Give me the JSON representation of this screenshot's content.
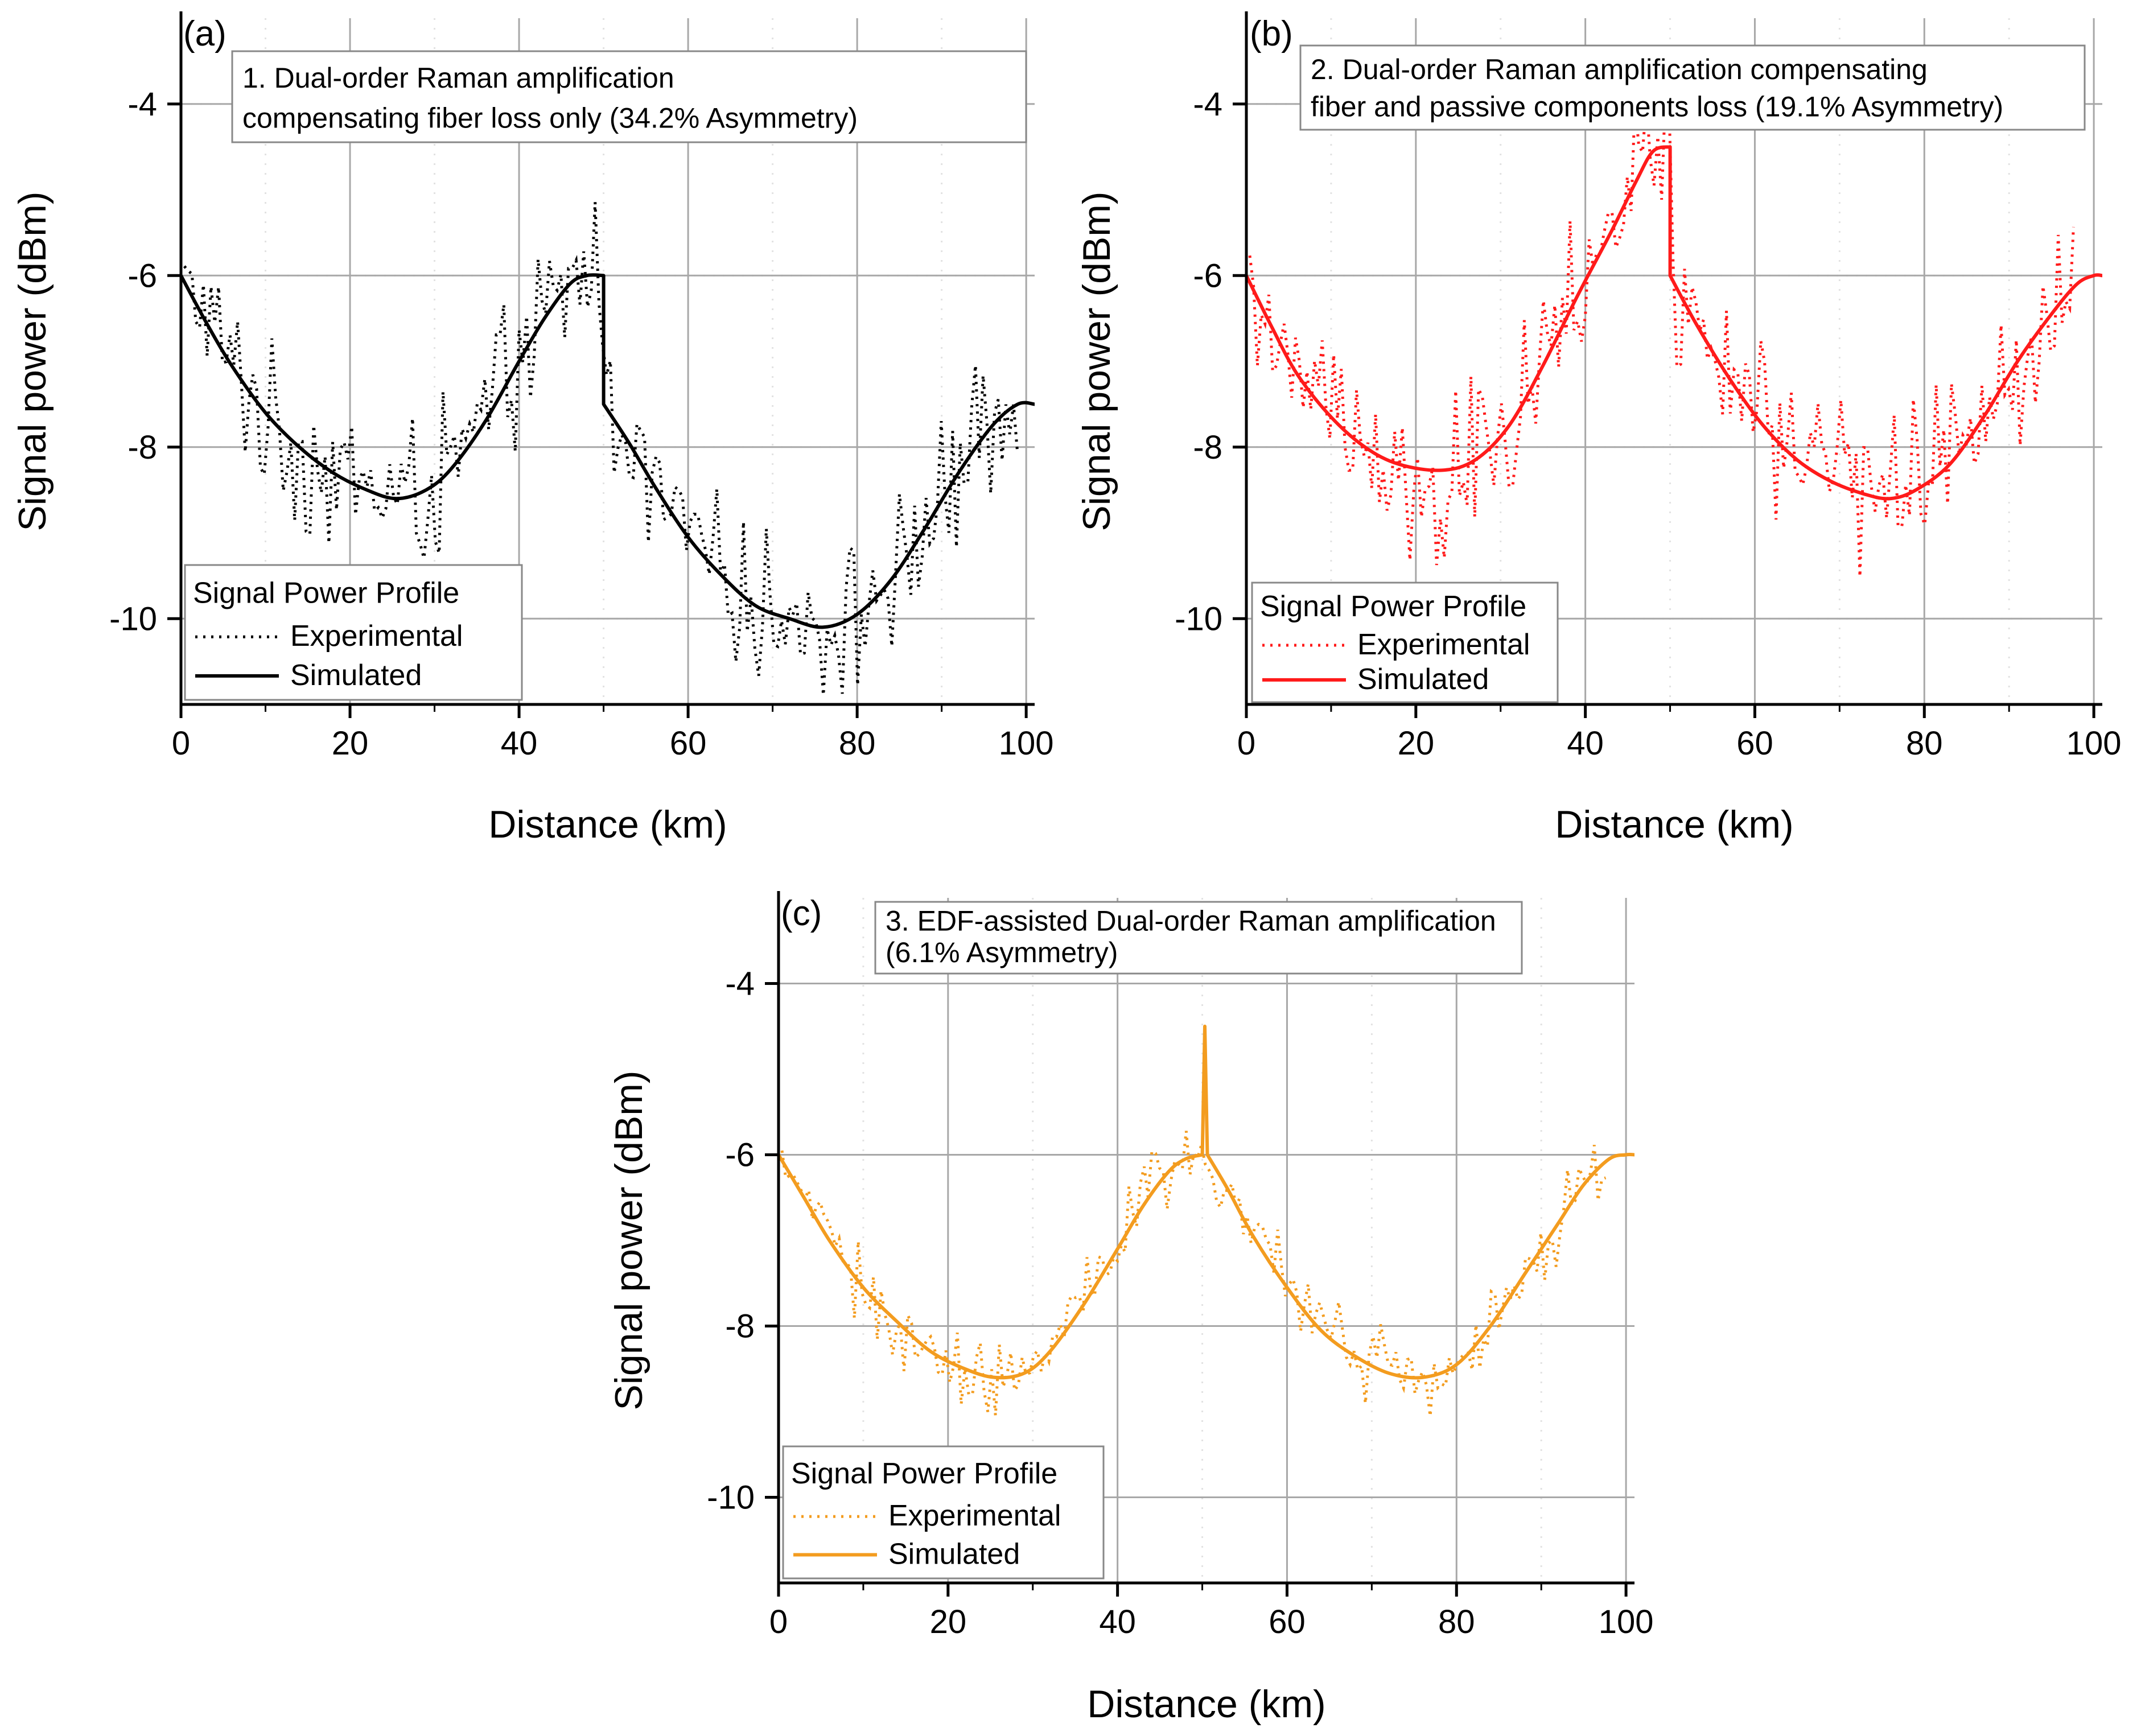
{
  "figure": {
    "ylabel": "Signal power (dBm)",
    "xlabel": "Distance (km)"
  },
  "chart_data": [
    {
      "type": "line",
      "panel": "(a)",
      "color": "#000000",
      "annotation": [
        "1. Dual-order Raman amplification",
        "compensating fiber loss only (34.2% Asymmetry)"
      ],
      "legend": {
        "title": "Signal Power Profile",
        "experimental": "Experimental",
        "simulated": "Simulated",
        "position": "bottom-left"
      },
      "xlabel": "Distance (km)",
      "ylabel": "Signal power (dBm)",
      "xlim": [
        0,
        101
      ],
      "ylim": [
        -11,
        -3
      ],
      "xticks": [
        0,
        20,
        40,
        60,
        80,
        100
      ],
      "yticks": [
        -4,
        -6,
        -8,
        -10
      ],
      "grid": true,
      "series": [
        {
          "name": "Simulated",
          "style": "solid",
          "points": [
            [
              0,
              -6.0
            ],
            [
              3,
              -6.55
            ],
            [
              6,
              -7.05
            ],
            [
              10,
              -7.6
            ],
            [
              14,
              -8.0
            ],
            [
              18,
              -8.3
            ],
            [
              22,
              -8.5
            ],
            [
              25.5,
              -8.6
            ],
            [
              29,
              -8.5
            ],
            [
              32,
              -8.25
            ],
            [
              36,
              -7.7
            ],
            [
              40,
              -7.0
            ],
            [
              43,
              -6.5
            ],
            [
              46,
              -6.1
            ],
            [
              48,
              -6.0
            ],
            [
              50,
              -6.0
            ],
            [
              50,
              -7.5
            ],
            [
              53,
              -7.95
            ],
            [
              56,
              -8.45
            ],
            [
              60,
              -9.05
            ],
            [
              64,
              -9.5
            ],
            [
              68,
              -9.85
            ],
            [
              72,
              -10.0
            ],
            [
              76,
              -10.1
            ],
            [
              80,
              -9.95
            ],
            [
              84,
              -9.55
            ],
            [
              88,
              -8.95
            ],
            [
              92,
              -8.3
            ],
            [
              96,
              -7.75
            ],
            [
              99,
              -7.5
            ],
            [
              101,
              -7.5
            ]
          ]
        },
        {
          "name": "Experimental",
          "style": "dotted",
          "noise": [
            1.1,
            1.4
          ],
          "base": [
            [
              0,
              -6.0
            ],
            [
              3,
              -6.55
            ],
            [
              6,
              -7.05
            ],
            [
              10,
              -7.6
            ],
            [
              14,
              -8.0
            ],
            [
              18,
              -8.3
            ],
            [
              22,
              -8.5
            ],
            [
              25.5,
              -8.6
            ],
            [
              29,
              -8.5
            ],
            [
              32,
              -8.25
            ],
            [
              36,
              -7.7
            ],
            [
              40,
              -7.0
            ],
            [
              43,
              -6.5
            ],
            [
              46,
              -6.1
            ],
            [
              48,
              -6.0
            ],
            [
              50,
              -6.0
            ],
            [
              50,
              -7.5
            ],
            [
              53,
              -7.95
            ],
            [
              56,
              -8.45
            ],
            [
              60,
              -9.05
            ],
            [
              64,
              -9.5
            ],
            [
              68,
              -9.85
            ],
            [
              72,
              -10.0
            ],
            [
              76,
              -10.1
            ],
            [
              80,
              -9.95
            ],
            [
              84,
              -9.55
            ],
            [
              88,
              -8.95
            ],
            [
              92,
              -8.3
            ],
            [
              96,
              -7.75
            ],
            [
              99,
              -7.5
            ]
          ]
        }
      ]
    },
    {
      "type": "line",
      "panel": "(b)",
      "color": "#ff1a1a",
      "annotation": [
        "2. Dual-order Raman amplification compensating",
        "fiber and passive components loss (19.1% Asymmetry)"
      ],
      "legend": {
        "title": "Signal Power Profile",
        "experimental": "Experimental",
        "simulated": "Simulated",
        "position": "bottom-left"
      },
      "xlabel": "Distance (km)",
      "ylabel": "Signal power (dBm)",
      "xlim": [
        0,
        101
      ],
      "ylim": [
        -11,
        -3
      ],
      "xticks": [
        0,
        20,
        40,
        60,
        80,
        100
      ],
      "yticks": [
        -4,
        -6,
        -8,
        -10
      ],
      "grid": true,
      "series": [
        {
          "name": "Simulated",
          "style": "solid",
          "points": [
            [
              0,
              -6.0
            ],
            [
              3,
              -6.6
            ],
            [
              6,
              -7.15
            ],
            [
              10,
              -7.65
            ],
            [
              14,
              -8.0
            ],
            [
              18,
              -8.2
            ],
            [
              23,
              -8.27
            ],
            [
              27,
              -8.15
            ],
            [
              31,
              -7.75
            ],
            [
              35,
              -7.05
            ],
            [
              39,
              -6.25
            ],
            [
              43,
              -5.5
            ],
            [
              46,
              -4.9
            ],
            [
              48,
              -4.55
            ],
            [
              50,
              -4.5
            ],
            [
              50,
              -6.0
            ],
            [
              53,
              -6.55
            ],
            [
              57,
              -7.2
            ],
            [
              61,
              -7.75
            ],
            [
              65,
              -8.15
            ],
            [
              69,
              -8.4
            ],
            [
              73,
              -8.55
            ],
            [
              76,
              -8.6
            ],
            [
              79,
              -8.5
            ],
            [
              83,
              -8.2
            ],
            [
              87,
              -7.65
            ],
            [
              91,
              -7.0
            ],
            [
              95,
              -6.45
            ],
            [
              98,
              -6.1
            ],
            [
              100,
              -6.0
            ],
            [
              101,
              -6.0
            ]
          ]
        },
        {
          "name": "Experimental",
          "style": "dotted",
          "noise": [
            1.2,
            1.6
          ],
          "base": [
            [
              0,
              -5.9
            ],
            [
              3,
              -6.6
            ],
            [
              6,
              -7.15
            ],
            [
              10,
              -7.65
            ],
            [
              14,
              -8.0
            ],
            [
              18,
              -8.2
            ],
            [
              23,
              -8.27
            ],
            [
              27,
              -8.15
            ],
            [
              31,
              -7.75
            ],
            [
              35,
              -7.05
            ],
            [
              39,
              -6.25
            ],
            [
              43,
              -5.5
            ],
            [
              46,
              -4.9
            ],
            [
              48,
              -4.55
            ],
            [
              50,
              -4.5
            ],
            [
              50,
              -6.0
            ],
            [
              53,
              -6.55
            ],
            [
              57,
              -7.2
            ],
            [
              61,
              -7.75
            ],
            [
              65,
              -8.15
            ],
            [
              69,
              -8.4
            ],
            [
              73,
              -8.55
            ],
            [
              76,
              -8.6
            ],
            [
              79,
              -8.5
            ],
            [
              83,
              -8.2
            ],
            [
              87,
              -7.65
            ],
            [
              91,
              -7.0
            ],
            [
              95,
              -6.45
            ],
            [
              98,
              -6.1
            ]
          ]
        }
      ]
    },
    {
      "type": "line",
      "panel": "(c)",
      "color": "#f39c1f",
      "annotation": [
        "3. EDF-assisted Dual-order Raman amplification",
        "(6.1% Asymmetry)"
      ],
      "legend": {
        "title": "Signal Power Profile",
        "experimental": "Experimental",
        "simulated": "Simulated",
        "position": "bottom-left"
      },
      "xlabel": "Distance (km)",
      "ylabel": "Signal power (dBm)",
      "xlim": [
        0,
        101
      ],
      "ylim": [
        -11,
        -3
      ],
      "xticks": [
        0,
        20,
        40,
        60,
        80,
        100
      ],
      "yticks": [
        -4,
        -6,
        -8,
        -10
      ],
      "grid": true,
      "series": [
        {
          "name": "Simulated",
          "style": "solid",
          "points": [
            [
              0,
              -6.0
            ],
            [
              3,
              -6.5
            ],
            [
              6,
              -7.0
            ],
            [
              10,
              -7.55
            ],
            [
              14,
              -7.95
            ],
            [
              18,
              -8.3
            ],
            [
              22,
              -8.5
            ],
            [
              25.5,
              -8.6
            ],
            [
              29,
              -8.55
            ],
            [
              32,
              -8.3
            ],
            [
              36,
              -7.75
            ],
            [
              40,
              -7.1
            ],
            [
              43,
              -6.6
            ],
            [
              46,
              -6.2
            ],
            [
              48,
              -6.05
            ],
            [
              50,
              -6.0
            ],
            [
              50.3,
              -4.5
            ],
            [
              50.6,
              -6.0
            ],
            [
              53,
              -6.4
            ],
            [
              56,
              -6.95
            ],
            [
              60,
              -7.55
            ],
            [
              64,
              -8.05
            ],
            [
              68,
              -8.35
            ],
            [
              72,
              -8.55
            ],
            [
              76,
              -8.6
            ],
            [
              80,
              -8.45
            ],
            [
              84,
              -8.0
            ],
            [
              88,
              -7.4
            ],
            [
              92,
              -6.8
            ],
            [
              95,
              -6.35
            ],
            [
              98,
              -6.05
            ],
            [
              100,
              -6.0
            ],
            [
              101,
              -6.0
            ]
          ]
        },
        {
          "name": "Experimental",
          "style": "dotted",
          "noise": [
            0.55,
            0.75
          ],
          "base": [
            [
              0,
              -6.0
            ],
            [
              3,
              -6.5
            ],
            [
              6,
              -7.0
            ],
            [
              10,
              -7.55
            ],
            [
              14,
              -7.95
            ],
            [
              18,
              -8.3
            ],
            [
              22,
              -8.5
            ],
            [
              25.5,
              -8.6
            ],
            [
              29,
              -8.55
            ],
            [
              32,
              -8.3
            ],
            [
              36,
              -7.75
            ],
            [
              40,
              -7.1
            ],
            [
              43,
              -6.6
            ],
            [
              46,
              -6.2
            ],
            [
              48,
              -6.05
            ],
            [
              50,
              -6.0
            ],
            [
              50.6,
              -6.0
            ],
            [
              53,
              -6.4
            ],
            [
              56,
              -6.95
            ],
            [
              60,
              -7.55
            ],
            [
              64,
              -8.05
            ],
            [
              68,
              -8.35
            ],
            [
              72,
              -8.55
            ],
            [
              76,
              -8.6
            ],
            [
              80,
              -8.45
            ],
            [
              84,
              -8.0
            ],
            [
              88,
              -7.4
            ],
            [
              92,
              -6.8
            ],
            [
              95,
              -6.35
            ],
            [
              98,
              -6.05
            ]
          ]
        }
      ]
    }
  ]
}
